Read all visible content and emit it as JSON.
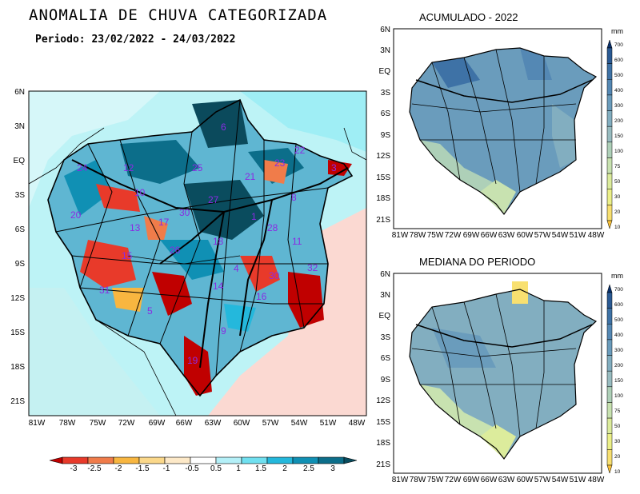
{
  "main": {
    "title": "ANOMALIA DE CHUVA CATEGORIZADA",
    "period": "Periodo: 23/02/2022 - 24/03/2022",
    "lat_ticks": [
      "6N",
      "3N",
      "EQ",
      "3S",
      "6S",
      "9S",
      "12S",
      "15S",
      "18S",
      "21S"
    ],
    "lon_ticks": [
      "81W",
      "78W",
      "75W",
      "72W",
      "69W",
      "66W",
      "63W",
      "60W",
      "57W",
      "54W",
      "51W",
      "48W"
    ],
    "basin_ids": [
      "1",
      "2",
      "3",
      "4",
      "5",
      "6",
      "7",
      "8",
      "9",
      "10",
      "11",
      "12",
      "13",
      "14",
      "15",
      "16",
      "17",
      "18",
      "19",
      "20",
      "21",
      "22",
      "23",
      "24",
      "25",
      "26",
      "27",
      "28",
      "29",
      "30",
      "31",
      "32"
    ],
    "colorbar": {
      "labels": [
        "-3",
        "-2.5",
        "-2",
        "-1.5",
        "-1",
        "-0.5",
        "0.5",
        "1",
        "1.5",
        "2",
        "2.5",
        "3"
      ],
      "colors": [
        "#c00000",
        "#e83a2a",
        "#f07c4a",
        "#f8b640",
        "#fbd88a",
        "#fde9c8",
        "#ffffff",
        "#b4f0f8",
        "#70e0f0",
        "#24b8dc",
        "#1090b4",
        "#0c6e8a",
        "#0a4c5e"
      ]
    }
  },
  "acumulado": {
    "title": "ACUMULADO - 2022",
    "lat_ticks": [
      "6N",
      "3N",
      "EQ",
      "3S",
      "6S",
      "9S",
      "12S",
      "15S",
      "18S",
      "21S"
    ],
    "lon_ticks": [
      "81W",
      "78W",
      "75W",
      "72W",
      "69W",
      "66W",
      "63W",
      "60W",
      "57W",
      "54W",
      "51W",
      "48W"
    ]
  },
  "mediana": {
    "title": "MEDIANA DO PERIODO",
    "lat_ticks": [
      "6N",
      "3N",
      "EQ",
      "3S",
      "6S",
      "9S",
      "12S",
      "15S",
      "18S",
      "21S"
    ],
    "lon_ticks": [
      "81W",
      "78W",
      "75W",
      "72W",
      "69W",
      "66W",
      "63W",
      "60W",
      "57W",
      "54W",
      "51W",
      "48W"
    ]
  },
  "mm_scale": {
    "unit": "mm",
    "labels": [
      "700",
      "600",
      "500",
      "400",
      "300",
      "200",
      "150",
      "100",
      "75",
      "50",
      "30",
      "20",
      "10"
    ],
    "colors": [
      "#08306b",
      "#2a5a94",
      "#3e72a6",
      "#5488b4",
      "#6a9cbc",
      "#82aec0",
      "#98bcc0",
      "#aed0b8",
      "#c8e2b0",
      "#dcec9c",
      "#ecf088",
      "#f8e070",
      "#f8c038"
    ]
  }
}
